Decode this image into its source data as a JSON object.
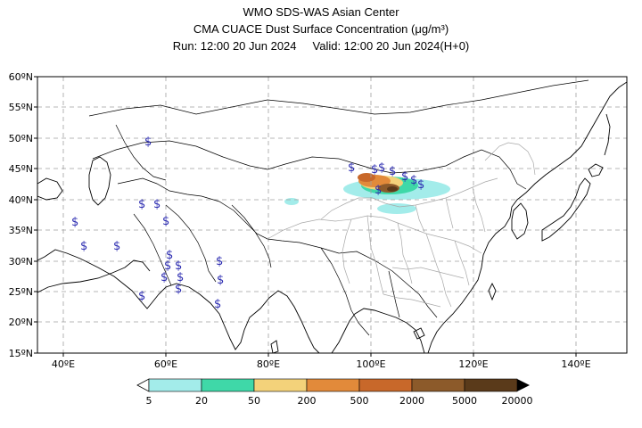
{
  "header": {
    "line1": "WMO SDS-WAS Asian Center",
    "line2": "CMA CUACE Dust Surface Concentration (μg/m³)",
    "run": "Run: 12:00 20 Jun 2024",
    "valid": "Valid: 12:00 20 Jun 2024(H+0)"
  },
  "map": {
    "lon_range": [
      35,
      150
    ],
    "lat_range": [
      15,
      60
    ],
    "x_ticks": [
      "40ºE",
      "60ºE",
      "80ºE",
      "100ºE",
      "120ºE",
      "140ºE"
    ],
    "y_ticks": [
      "15ºN",
      "20ºN",
      "25ºN",
      "30ºN",
      "35ºN",
      "40ºN",
      "45ºN",
      "50ºN",
      "55ºN",
      "60ºN"
    ],
    "grid": true,
    "symbol": "$"
  },
  "colorbar": {
    "levels": [
      "5",
      "20",
      "50",
      "200",
      "500",
      "2000",
      "5000",
      "20000"
    ],
    "colors": [
      "#a3ecea",
      "#3fd8a8",
      "#f3d27a",
      "#e28a3a",
      "#c8682a",
      "#8c5a2a",
      "#5a3a1a"
    ]
  }
}
